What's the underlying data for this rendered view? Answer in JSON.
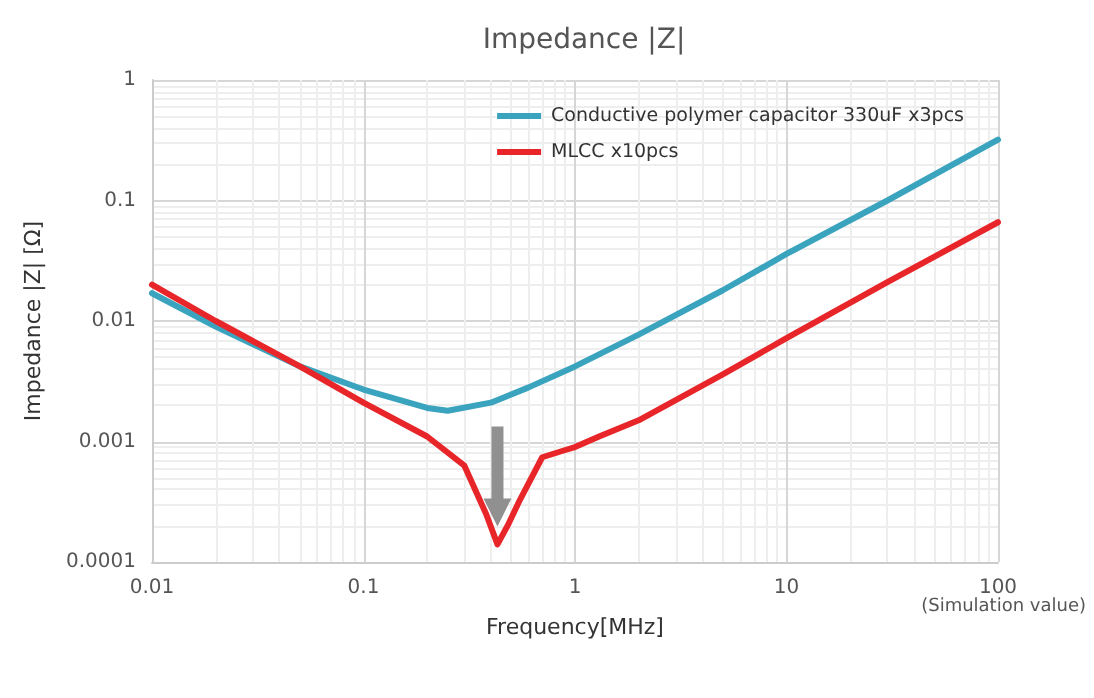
{
  "chart_data": {
    "type": "line",
    "title": "Impedance |Z|",
    "xlabel": "Frequency[MHz]",
    "ylabel": "Impedance |Z| [Ω]",
    "annotations": [
      "(Simulation value)"
    ],
    "log": "xy",
    "grid": true,
    "legend": "top right",
    "marker": "none",
    "line_style": "solid",
    "xlim": [
      0.01,
      100
    ],
    "ylim": [
      0.0001,
      1
    ],
    "xticks": [
      0.01,
      0.1,
      1,
      10,
      100
    ],
    "yticks": [
      0.0001,
      0.001,
      0.01,
      0.1,
      1
    ],
    "series": [
      {
        "name": "Conductive polymer capacitor 330uF x3pcs",
        "color": "#3aa3bd",
        "x": [
          0.01,
          0.02,
          0.05,
          0.1,
          0.2,
          0.25,
          0.4,
          0.6,
          1,
          2,
          5,
          10,
          30,
          100
        ],
        "values": [
          0.017,
          0.009,
          0.0042,
          0.0027,
          0.0019,
          0.0018,
          0.0021,
          0.0028,
          0.0042,
          0.0077,
          0.018,
          0.036,
          0.1,
          0.32
        ]
      },
      {
        "name": "MLCC x10pcs",
        "color": "#e8262a",
        "x": [
          0.01,
          0.02,
          0.05,
          0.1,
          0.2,
          0.3,
          0.38,
          0.43,
          0.48,
          0.55,
          0.7,
          0.9,
          1,
          1.3,
          2,
          5,
          10,
          30,
          100
        ],
        "values": [
          0.02,
          0.01,
          0.0042,
          0.0021,
          0.0011,
          0.00063,
          0.00025,
          0.00014,
          0.0002,
          0.00033,
          0.00074,
          0.00085,
          0.0009,
          0.0011,
          0.0015,
          0.0036,
          0.0072,
          0.021,
          0.066
        ]
      }
    ]
  }
}
